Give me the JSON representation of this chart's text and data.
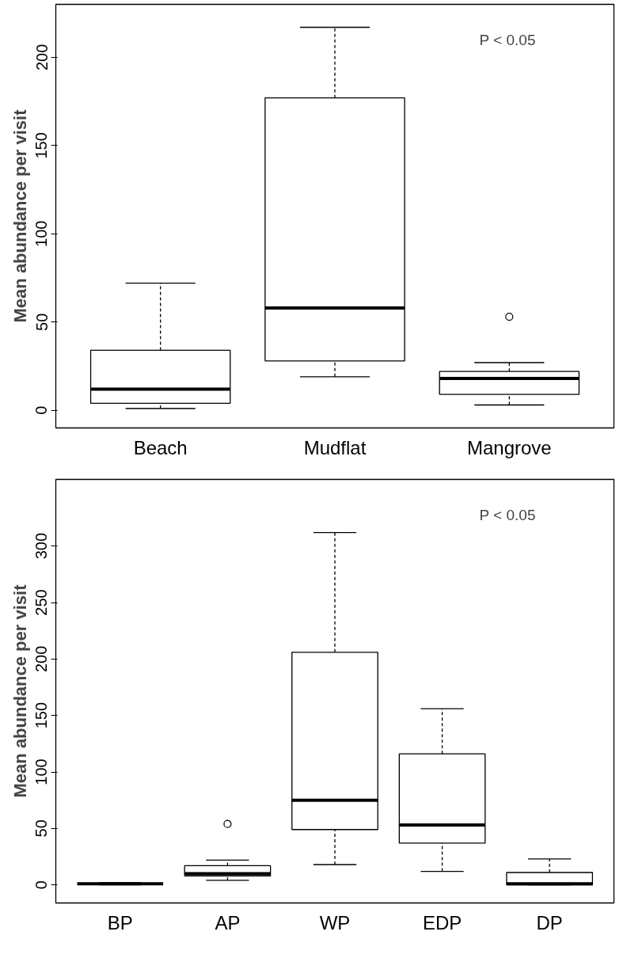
{
  "chart_data": [
    {
      "type": "box",
      "ylabel": "Mean abundance per visit",
      "categories": [
        "Beach",
        "Mudflat",
        "Mangrove"
      ],
      "boxes": [
        {
          "low": 1,
          "q1": 4,
          "median": 12,
          "q3": 34,
          "high": 72
        },
        {
          "low": 19,
          "q1": 28,
          "median": 58,
          "q3": 177,
          "high": 217
        },
        {
          "low": 3,
          "q1": 9,
          "median": 18,
          "q3": 22,
          "high": 27,
          "outliers": [
            53
          ]
        }
      ],
      "ylim": [
        -10,
        230
      ],
      "yticks": [
        0,
        50,
        100,
        150,
        200
      ],
      "annotations": [
        "P < 0.05"
      ]
    },
    {
      "type": "box",
      "ylabel": "Mean abundance per visit",
      "categories": [
        "BP",
        "AP",
        "WP",
        "EDP",
        "DP"
      ],
      "boxes": [
        {
          "low": 0,
          "q1": 1,
          "median": 1,
          "q3": 1,
          "high": 2
        },
        {
          "low": 4,
          "q1": 8,
          "median": 10,
          "q3": 17,
          "high": 22,
          "outliers": [
            54
          ]
        },
        {
          "low": 18,
          "q1": 49,
          "median": 75,
          "q3": 206,
          "high": 312
        },
        {
          "low": 12,
          "q1": 37,
          "median": 53,
          "q3": 116,
          "high": 156
        },
        {
          "low": 0,
          "q1": 0,
          "median": 1,
          "q3": 11,
          "high": 23
        }
      ],
      "ylim": [
        -16,
        359
      ],
      "yticks": [
        0,
        50,
        100,
        150,
        200,
        250,
        300
      ],
      "annotations": [
        "P < 0.05"
      ]
    }
  ]
}
